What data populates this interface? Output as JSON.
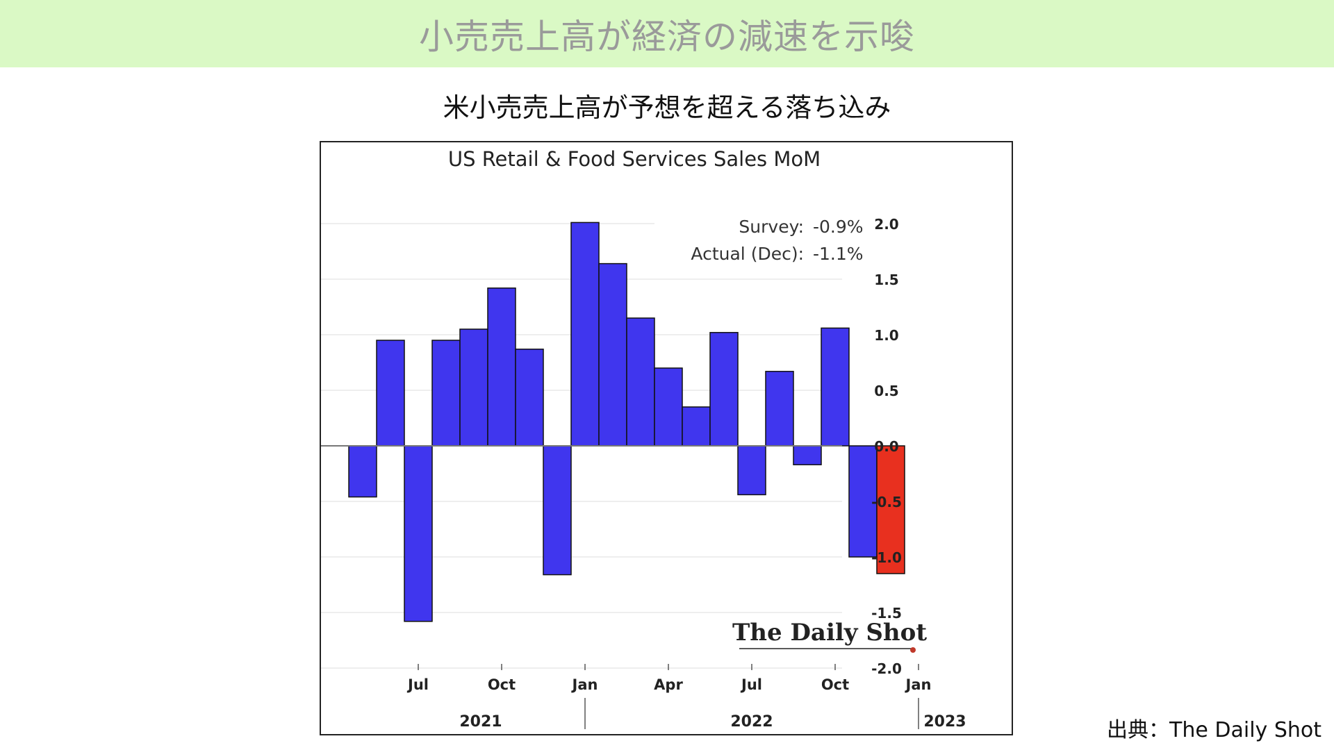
{
  "header": {
    "banner_title": "小売売上高が経済の減速を示唆",
    "subtitle": "米小売売上高が予想を超える落ち込み"
  },
  "source": {
    "text": "出典：The Daily Shot"
  },
  "colors": {
    "banner_bg": "#daf9c5",
    "bar_default": "#4036ee",
    "bar_highlight": "#e8301f",
    "logo_dot": "#c0392b"
  },
  "chart_data": {
    "type": "bar",
    "title": "US Retail & Food Services Sales MoM",
    "annotation": {
      "survey_label": "Survey:",
      "survey_value": "-0.9%",
      "actual_label": "Actual (Dec):",
      "actual_value": "-1.1%"
    },
    "categories": [
      "2021-05",
      "2021-06",
      "2021-07",
      "2021-08",
      "2021-09",
      "2021-10",
      "2021-11",
      "2021-12",
      "2022-01",
      "2022-02",
      "2022-03",
      "2022-04",
      "2022-05",
      "2022-06",
      "2022-07",
      "2022-08",
      "2022-09",
      "2022-10",
      "2022-11",
      "2022-12"
    ],
    "values": [
      -0.46,
      0.95,
      -1.58,
      0.95,
      1.05,
      1.42,
      0.87,
      -1.16,
      2.01,
      1.64,
      1.15,
      0.7,
      0.35,
      1.02,
      -0.44,
      0.67,
      -0.17,
      1.06,
      -1.0,
      -1.15
    ],
    "highlight_index": 19,
    "ylim": [
      -2.0,
      2.0
    ],
    "yticks": [
      "2.0",
      "1.5",
      "1.0",
      "0.5",
      "0.0",
      "-0.5",
      "-1.0",
      "-1.5",
      "-2.0"
    ],
    "ytick_values": [
      2.0,
      1.5,
      1.0,
      0.5,
      0.0,
      -0.5,
      -1.0,
      -1.5,
      -2.0
    ],
    "y_axis_position": "right",
    "xticks": [
      {
        "label": "Jul",
        "at": "2021-07"
      },
      {
        "label": "Oct",
        "at": "2021-10"
      },
      {
        "label": "Jan",
        "at": "2022-01"
      },
      {
        "label": "Apr",
        "at": "2022-04"
      },
      {
        "label": "Jul",
        "at": "2022-07"
      },
      {
        "label": "Oct",
        "at": "2022-10"
      },
      {
        "label": "Jan",
        "at": "2023-01"
      }
    ],
    "years": [
      "2021",
      "2022",
      "2023"
    ],
    "grid": true,
    "watermark": "The Daily Shot"
  }
}
